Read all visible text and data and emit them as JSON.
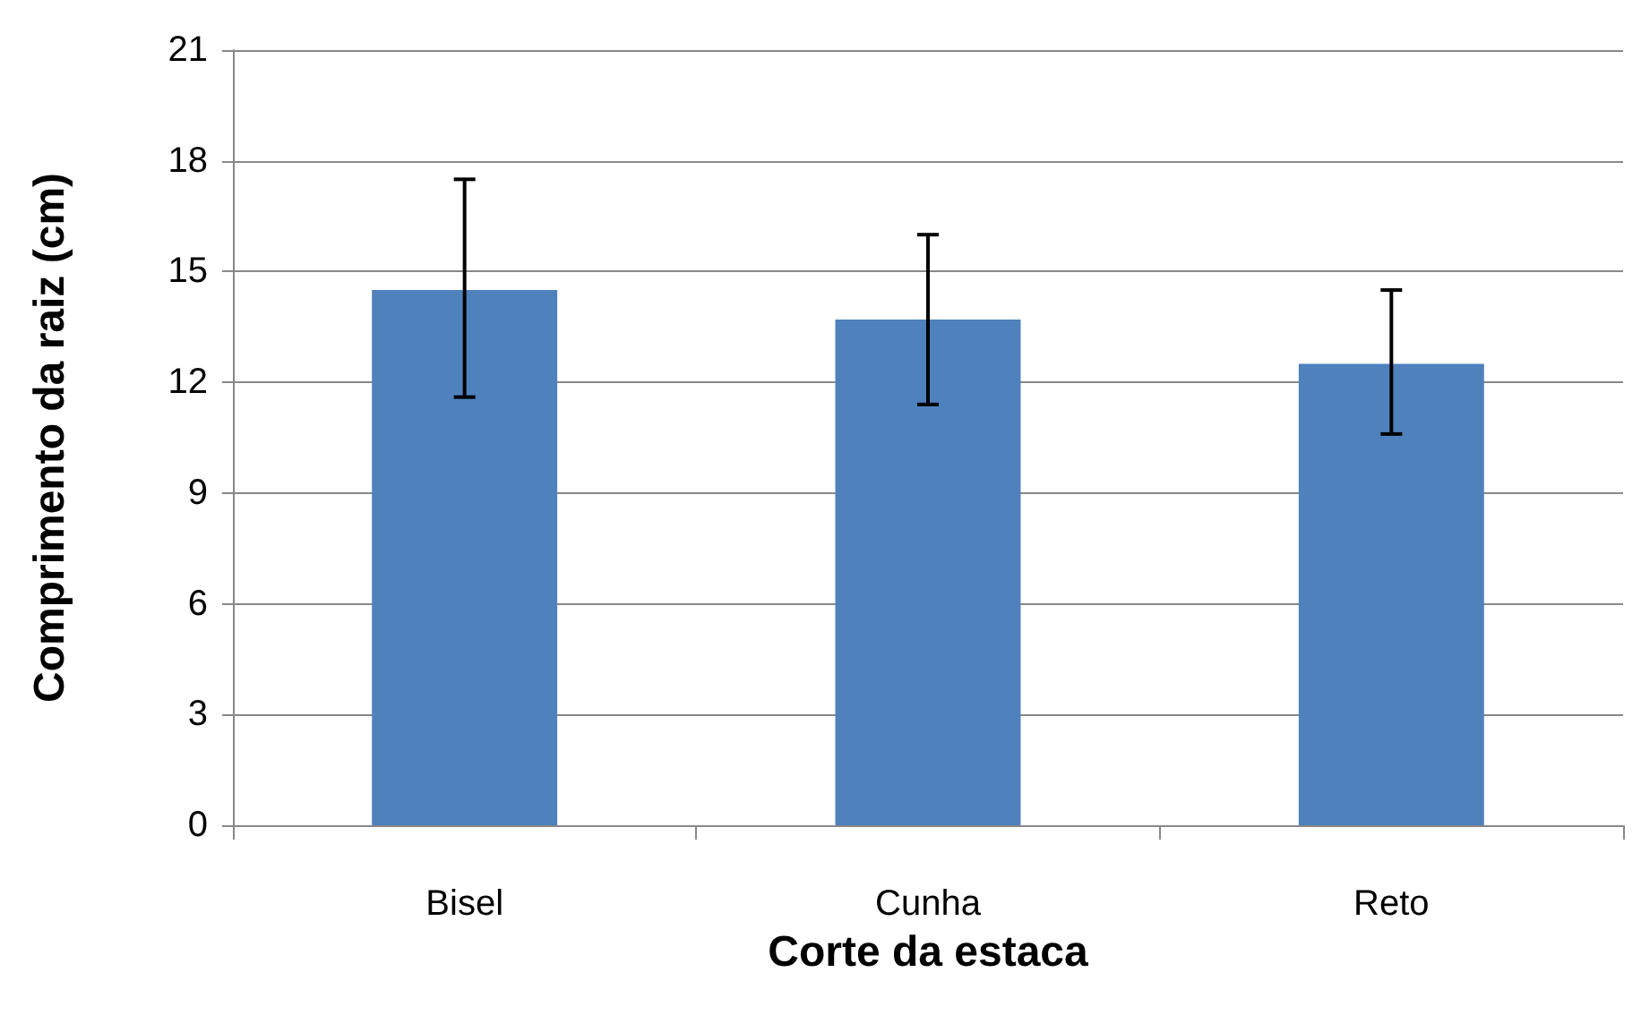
{
  "chart_data": {
    "type": "bar",
    "xlabel": "Corte da estaca",
    "ylabel": "Comprimento da raiz (cm)",
    "categories": [
      "Bisel",
      "Cunha",
      "Reto"
    ],
    "values": [
      14.5,
      13.7,
      12.5
    ],
    "errors": [
      [
        11.6,
        17.5
      ],
      [
        11.4,
        16.0
      ],
      [
        10.6,
        14.5
      ]
    ],
    "color": "#4f81bd",
    "ylim": [
      0,
      21
    ],
    "yticks": [
      0,
      3,
      6,
      9,
      12,
      15,
      18,
      21
    ],
    "grid": "y"
  }
}
